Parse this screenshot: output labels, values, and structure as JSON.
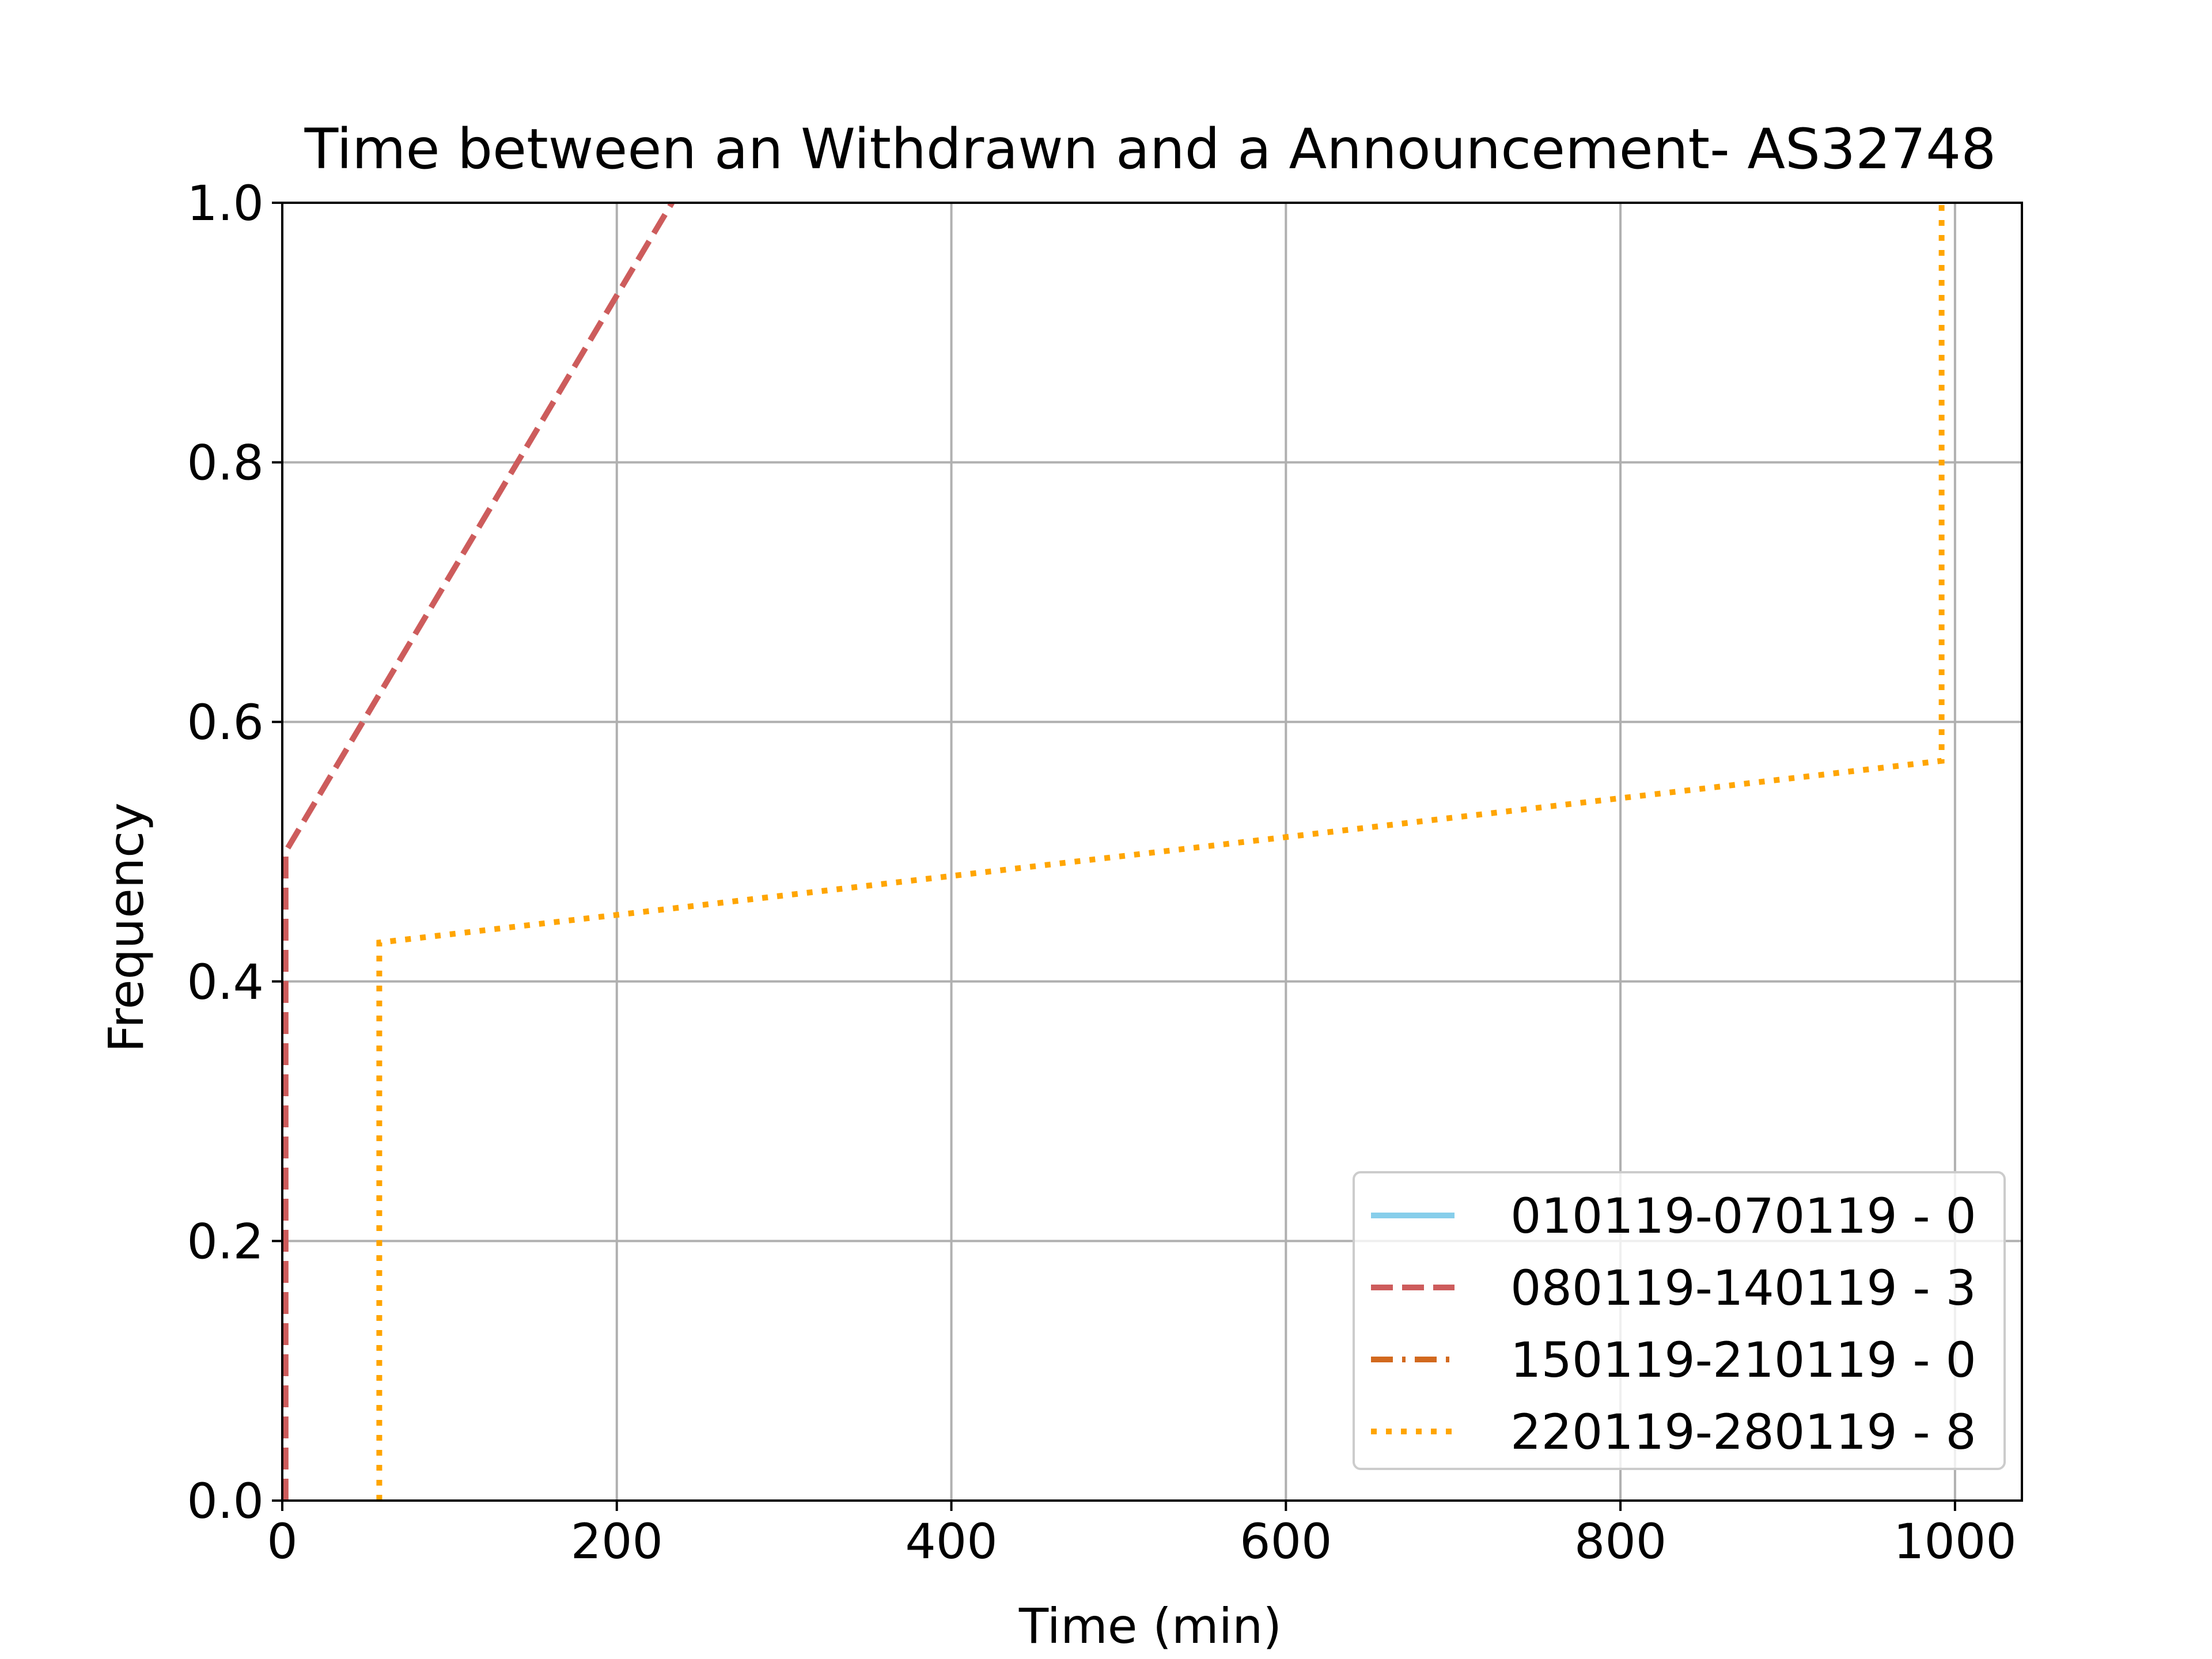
{
  "chart_data": {
    "type": "line",
    "title": "Time between an Withdrawn and a Announcement- AS32748",
    "xlabel": "Time (min)",
    "ylabel": "Frequency",
    "xlim": [
      0,
      1040
    ],
    "ylim": [
      0,
      1.0
    ],
    "xticks": [
      0,
      200,
      400,
      600,
      800,
      1000
    ],
    "xtick_labels": [
      "0",
      "200",
      "400",
      "600",
      "800",
      "1000"
    ],
    "yticks": [
      0.0,
      0.2,
      0.4,
      0.6,
      0.8,
      1.0
    ],
    "ytick_labels": [
      "0.0",
      "0.2",
      "0.4",
      "0.6",
      "0.8",
      "1.0"
    ],
    "grid": true,
    "legend_position": "bottom-right",
    "series": [
      {
        "name": "010119-070119 - 0",
        "color": "#87ceeb",
        "style": "solid",
        "x": [],
        "y": []
      },
      {
        "name": "080119-140119 - 3",
        "color": "#cd5c5c",
        "style": "dashed",
        "x": [
          2,
          2,
          233
        ],
        "y": [
          0.0,
          0.5,
          1.0
        ]
      },
      {
        "name": "150119-210119 - 0",
        "color": "#d2691e",
        "style": "dashdot",
        "x": [],
        "y": []
      },
      {
        "name": "220119-280119 - 8",
        "color": "#ffa500",
        "style": "dotted",
        "x": [
          58,
          58,
          992,
          992
        ],
        "y": [
          0.0,
          0.43,
          0.57,
          1.0
        ]
      }
    ]
  }
}
